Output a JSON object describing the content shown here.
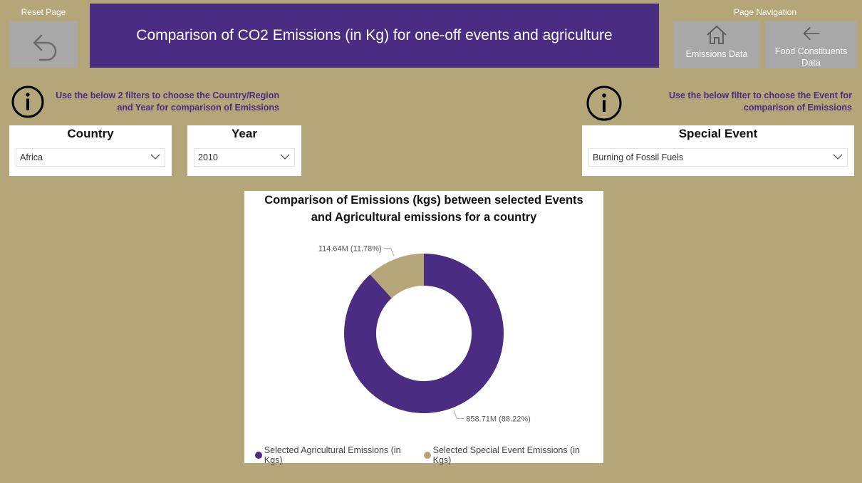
{
  "reset": {
    "label": "Reset Page",
    "icon": "undo-arrow-icon"
  },
  "title": "Comparison of CO2 Emissions (in Kg) for one-off events and agriculture",
  "navigation": {
    "label": "Page Navigation",
    "buttons": [
      {
        "label": "Emissions Data",
        "icon": "home-icon"
      },
      {
        "label": "Food Constituents Data",
        "icon": "back-arrow-icon"
      }
    ]
  },
  "info_left": {
    "line1": "Use the below 2 filters to choose the Country/Region",
    "line2": "and Year for comparison of Emissions"
  },
  "info_right": {
    "line1": "Use the below filter to choose the Event for",
    "line2": "comparison of Emissions"
  },
  "slicers": {
    "country": {
      "title": "Country",
      "value": "Africa"
    },
    "year": {
      "title": "Year",
      "value": "2010"
    },
    "event": {
      "title": "Special Event",
      "value": "Burning of Fossil Fuels"
    }
  },
  "colors": {
    "primary": "#4b2c83",
    "secondary": "#b5a679",
    "button": "#a8a8a8"
  },
  "chart_data": {
    "type": "pie",
    "donut": true,
    "title_line1": "Comparison of Emissions (kgs) between selected Events",
    "title_line2": "and Agricultural emissions for a country",
    "legend_position": "bottom",
    "slices": [
      {
        "name": "Selected Agricultural Emissions (in Kgs)",
        "value": 858.71,
        "unit": "M",
        "percent": 88.22,
        "label": "858.71M (88.22%)",
        "color": "#4b2c83"
      },
      {
        "name": "Selected Special Event Emissions (in Kgs)",
        "value": 114.64,
        "unit": "M",
        "percent": 11.78,
        "label": "114.64M (11.78%)",
        "color": "#b5a679"
      }
    ]
  }
}
